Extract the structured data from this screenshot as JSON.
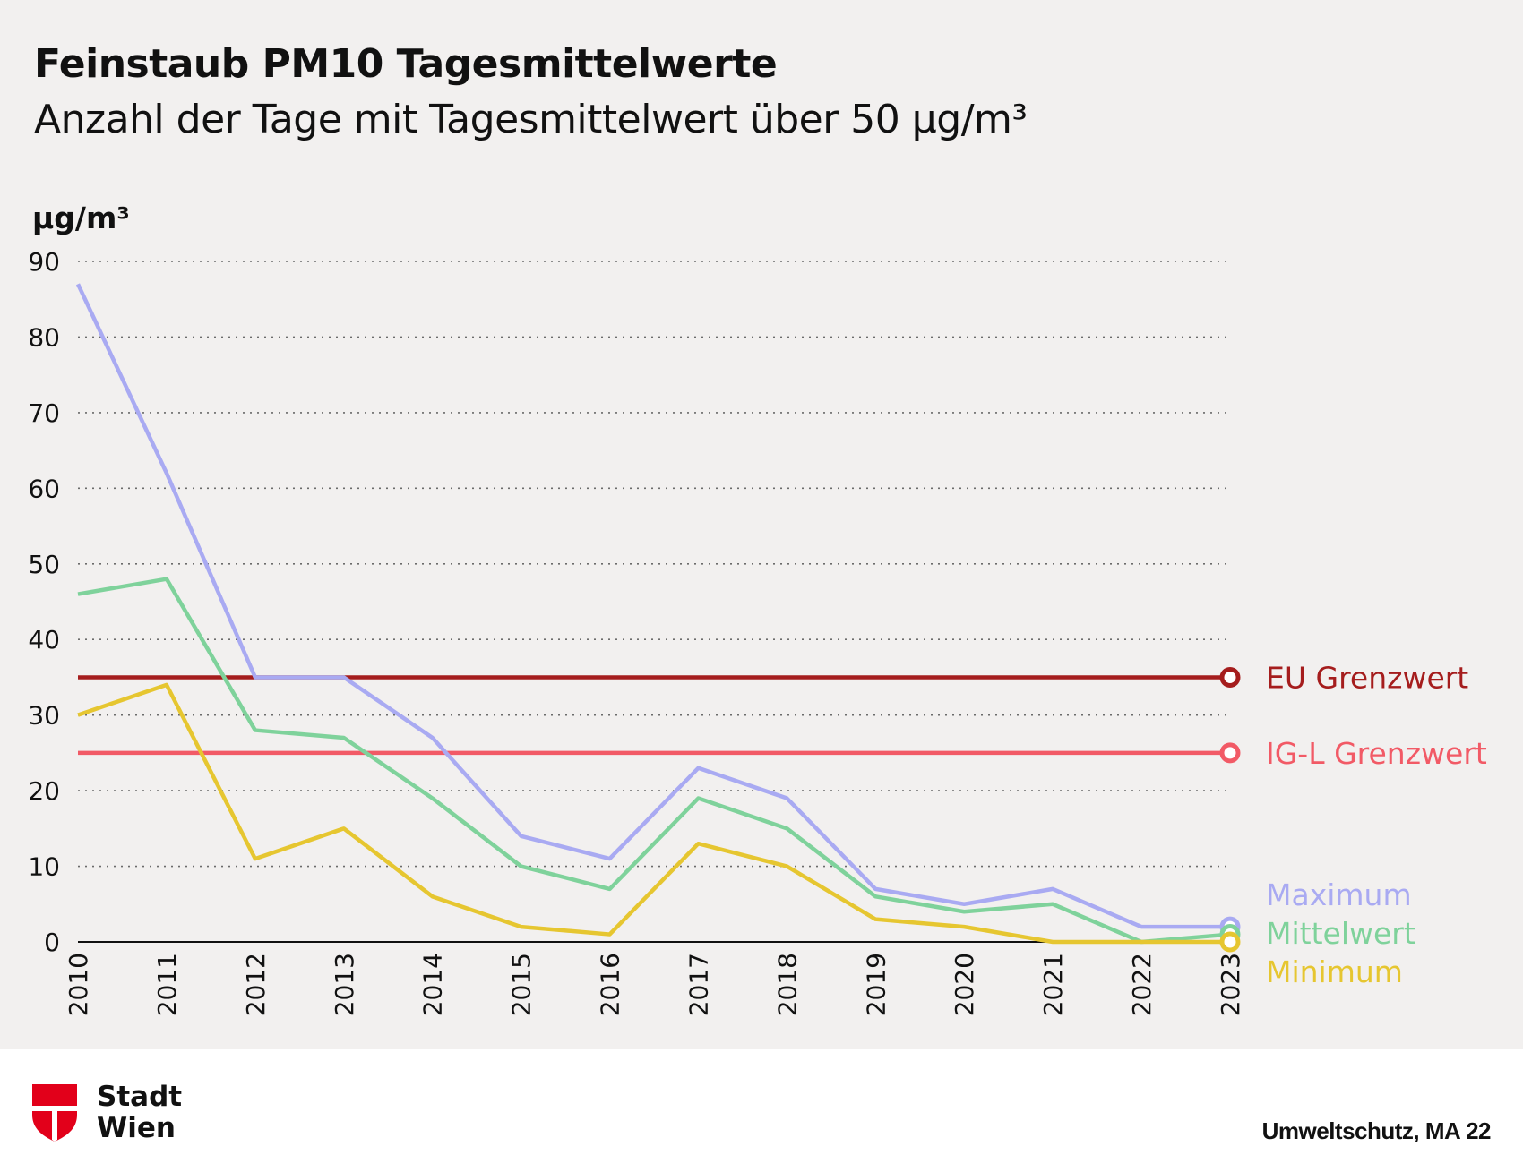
{
  "header": {
    "title": "Feinstaub PM10 Tagesmittelwerte",
    "subtitle": "Anzahl der Tage mit Tagesmittelwert über 50 µg/m³"
  },
  "chart_data": {
    "type": "line",
    "ylabel": "µg/m³",
    "ylim": [
      0,
      90
    ],
    "yticks": [
      0,
      10,
      20,
      30,
      40,
      50,
      60,
      70,
      80,
      90
    ],
    "grid": "horizontal dotted",
    "x": [
      "2010",
      "2011",
      "2012",
      "2013",
      "2014",
      "2015",
      "2016",
      "2017",
      "2018",
      "2019",
      "2020",
      "2021",
      "2022",
      "2023"
    ],
    "series": [
      {
        "name": "Maximum",
        "color": "#a9aaf2",
        "values": [
          87,
          62,
          35,
          35,
          27,
          14,
          11,
          23,
          19,
          7,
          5,
          7,
          2,
          2
        ]
      },
      {
        "name": "Mittelwert",
        "color": "#7fd29b",
        "values": [
          46,
          48,
          28,
          27,
          19,
          10,
          7,
          19,
          15,
          6,
          4,
          5,
          0,
          1
        ]
      },
      {
        "name": "Minimum",
        "color": "#e6c630",
        "values": [
          30,
          34,
          11,
          15,
          6,
          2,
          1,
          13,
          10,
          3,
          2,
          0,
          0,
          0
        ]
      }
    ],
    "reference_lines": [
      {
        "name": "EU Grenzwert",
        "value": 35,
        "color": "#a51d1d"
      },
      {
        "name": "IG-L Grenzwert",
        "value": 25,
        "color": "#f25a66"
      }
    ]
  },
  "footer": {
    "logo_line1": "Stadt",
    "logo_line2": "Wien",
    "source": "Umweltschutz, MA 22"
  }
}
